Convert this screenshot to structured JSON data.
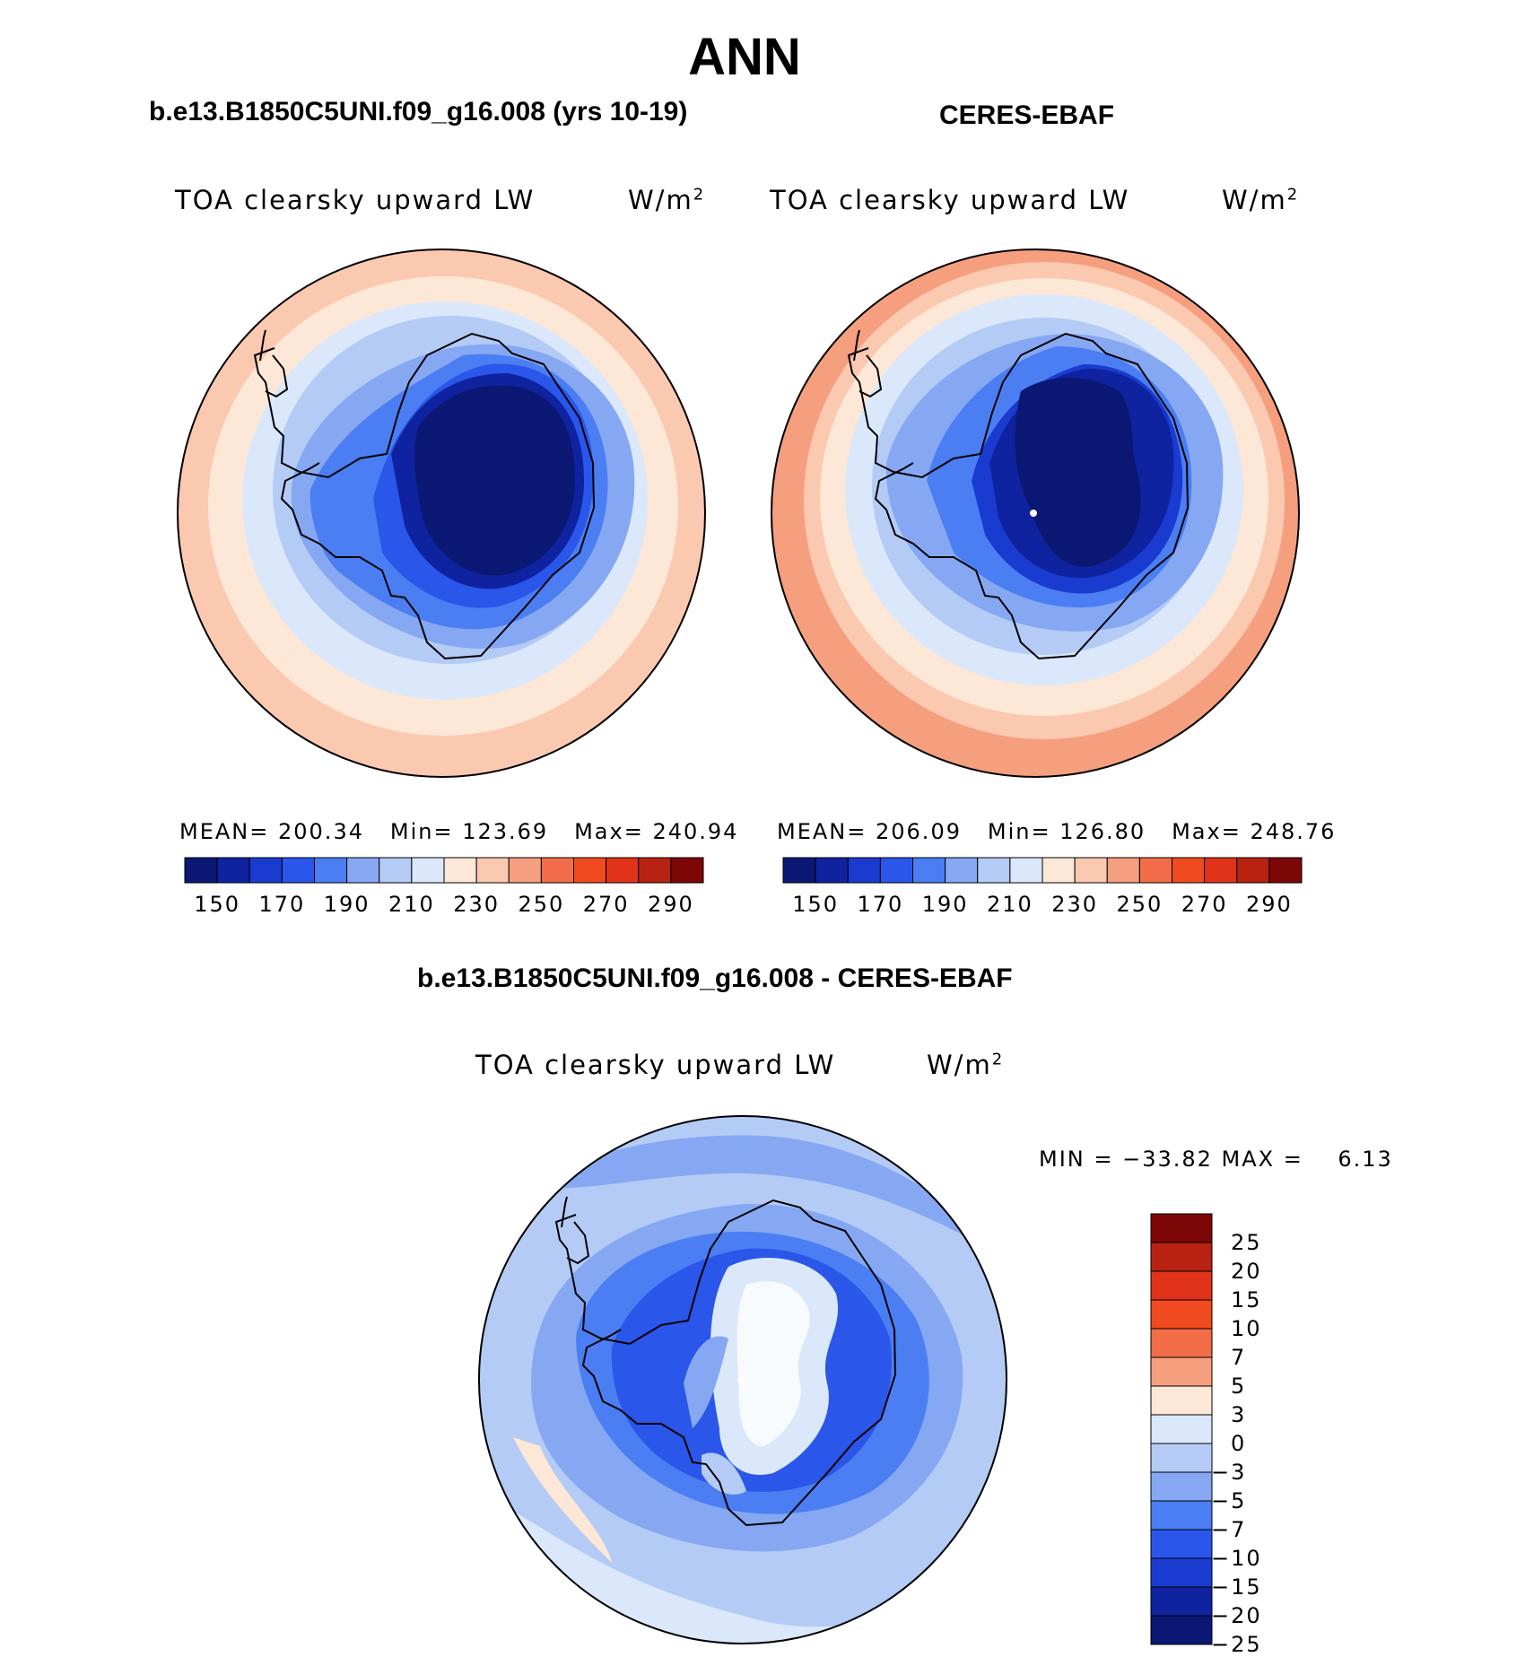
{
  "title": "ANN",
  "panels": [
    {
      "case_title": "b.e13.B1850C5UNI.f09_g16.008 (yrs 10-19)",
      "var_label": "TOA clearsky upward LW",
      "units": "W/m",
      "units_sup": "2",
      "mean_label": "MEAN=",
      "mean": "200.34",
      "min_label": "Min=",
      "min": "123.69",
      "max_label": "Max=",
      "max": "240.94"
    },
    {
      "case_title": "CERES-EBAF",
      "var_label": "TOA clearsky upward LW",
      "units": "W/m",
      "units_sup": "2",
      "mean_label": "MEAN=",
      "mean": "206.09",
      "min_label": "Min=",
      "min": "126.80",
      "max_label": "Max=",
      "max": "248.76"
    }
  ],
  "diff": {
    "case_title": "b.e13.B1850C5UNI.f09_g16.008 - CERES-EBAF",
    "var_label": "TOA clearsky upward LW",
    "units": "W/m",
    "units_sup": "2",
    "minmax_text": "MIN = −33.82 MAX =    6.13"
  },
  "abs_colorbar": {
    "colors": [
      "#0a1873",
      "#0f22a0",
      "#1a3bd0",
      "#2a56ea",
      "#4a7ef2",
      "#86a8f2",
      "#b4cbf6",
      "#dbe8fb",
      "#fde7d6",
      "#fbc8b0",
      "#f59f7e",
      "#f26d47",
      "#f04a1f",
      "#e0331a",
      "#b82212",
      "#7d0707"
    ],
    "tick_labels": [
      "150",
      "170",
      "190",
      "210",
      "230",
      "250",
      "270",
      "290"
    ]
  },
  "diff_colorbar": {
    "colors": [
      "#7d0707",
      "#b82212",
      "#e0331a",
      "#f04a1f",
      "#f26d47",
      "#f59f7e",
      "#fde7d6",
      "#dbe8fb",
      "#b4cbf6",
      "#86a8f2",
      "#4a7ef2",
      "#2a56ea",
      "#1a3bd0",
      "#0f22a0",
      "#0a1873"
    ],
    "tick_labels": [
      "25",
      "20",
      "15",
      "10",
      "7",
      "5",
      "3",
      "0",
      "−3",
      "−5",
      "−7",
      "−10",
      "−15",
      "−20",
      "−25"
    ]
  }
}
